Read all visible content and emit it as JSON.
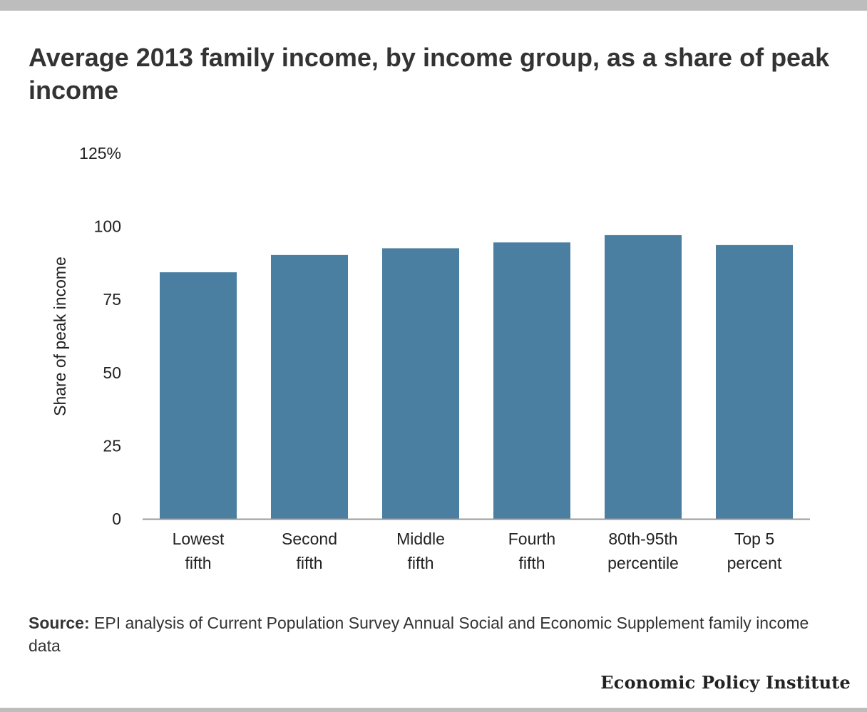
{
  "title": "Average 2013 family income, by income group, as a share of peak income",
  "source": {
    "label": "Source:",
    "text": "EPI analysis of Current Population Survey Annual Social and Economic Supplement family income data"
  },
  "brand": "Economic Policy Institute",
  "colors": {
    "bar": "#4a7fa1",
    "axis": "#999999",
    "rule": "#bdbdbd",
    "text": "#333333"
  },
  "chart_data": {
    "type": "bar",
    "title": "Average 2013 family income, by income group, as a share of peak income",
    "xlabel": "",
    "ylabel": "Share of peak income",
    "categories": [
      [
        "Lowest",
        "fifth"
      ],
      [
        "Second",
        "fifth"
      ],
      [
        "Middle",
        "fifth"
      ],
      [
        "Fourth",
        "fifth"
      ],
      [
        "80th-95th",
        "percentile"
      ],
      [
        "Top 5",
        "percent"
      ]
    ],
    "values": [
      84.3,
      90.2,
      92.5,
      94.5,
      97.0,
      93.6
    ],
    "ylim": [
      0,
      125
    ],
    "yticks": [
      0,
      25,
      50,
      75,
      100,
      125
    ],
    "ytick_labels": [
      "0",
      "25",
      "50",
      "75",
      "100",
      "125%"
    ],
    "grid": false,
    "legend": "none"
  }
}
